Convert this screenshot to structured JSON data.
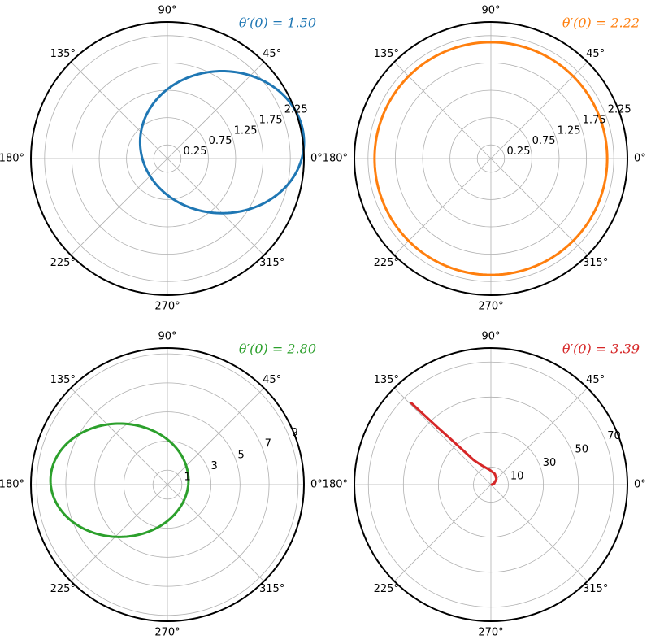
{
  "chart_data": [
    {
      "type": "line",
      "projection": "polar",
      "title": "θ′(0) = 1.50",
      "color": "#1f77b4",
      "theta_ticks": [
        "0°",
        "45°",
        "90°",
        "135°",
        "180°",
        "225°",
        "270°",
        "315°"
      ],
      "r_ticks": [
        0.25,
        0.75,
        1.25,
        1.75,
        2.25
      ],
      "r_tick_labels": [
        "0.25",
        "0.75",
        "1.25",
        "1.75",
        "2.25"
      ],
      "rlim": [
        0,
        2.5
      ],
      "grid": true,
      "series": [
        {
          "curve": "ellipse",
          "center_x": 1.0,
          "center_y": 0.3,
          "semi_axis_x": 1.5,
          "semi_axis_y": 1.3,
          "r_min": 0.45,
          "r_max": 2.4
        }
      ]
    },
    {
      "type": "line",
      "projection": "polar",
      "title": "θ′(0) = 2.22",
      "color": "#ff7f0e",
      "theta_ticks": [
        "0°",
        "45°",
        "90°",
        "135°",
        "180°",
        "225°",
        "270°",
        "315°"
      ],
      "r_ticks": [
        0.25,
        0.75,
        1.25,
        1.75,
        2.25
      ],
      "r_tick_labels": [
        "0.25",
        "0.75",
        "1.25",
        "1.75",
        "2.25"
      ],
      "rlim": [
        0,
        2.5
      ],
      "grid": true,
      "series": [
        {
          "curve": "circle",
          "r": 2.13
        }
      ]
    },
    {
      "type": "line",
      "projection": "polar",
      "title": "θ′(0) = 2.80",
      "color": "#2ca02c",
      "theta_ticks": [
        "0°",
        "45°",
        "90°",
        "135°",
        "180°",
        "225°",
        "270°",
        "315°"
      ],
      "r_ticks": [
        1,
        3,
        5,
        7,
        9
      ],
      "r_tick_labels": [
        "1",
        "3",
        "5",
        "7",
        "9"
      ],
      "rlim": [
        0,
        9.4
      ],
      "grid": true,
      "series": [
        {
          "curve": "ellipse",
          "center_x": -3.3,
          "center_y": 0.3,
          "semi_axis_x": 4.75,
          "semi_axis_y": 3.9,
          "r_min": 1.45,
          "r_max": 8.05
        }
      ]
    },
    {
      "type": "line",
      "projection": "polar",
      "title": "θ′(0) = 3.39",
      "color": "#d62728",
      "theta_ticks": [
        "0°",
        "45°",
        "90°",
        "135°",
        "180°",
        "225°",
        "270°",
        "315°"
      ],
      "r_ticks": [
        10,
        30,
        50,
        70
      ],
      "r_tick_labels": [
        "10",
        "30",
        "50",
        "70"
      ],
      "rlim": [
        0,
        78
      ],
      "grid": true,
      "series": [
        {
          "curve": "path",
          "points": [
            {
              "theta": 0,
              "r": 0.5
            },
            {
              "theta": 20,
              "r": 2
            },
            {
              "theta": 45,
              "r": 4.5
            },
            {
              "theta": 70,
              "r": 6.5
            },
            {
              "theta": 95,
              "r": 8.5
            },
            {
              "theta": 115,
              "r": 12
            },
            {
              "theta": 125,
              "r": 17
            },
            {
              "theta": 129,
              "r": 25
            },
            {
              "theta": 131.5,
              "r": 35
            },
            {
              "theta": 133,
              "r": 45
            },
            {
              "theta": 133.8,
              "r": 55
            },
            {
              "theta": 134.3,
              "r": 65
            }
          ]
        }
      ]
    }
  ]
}
